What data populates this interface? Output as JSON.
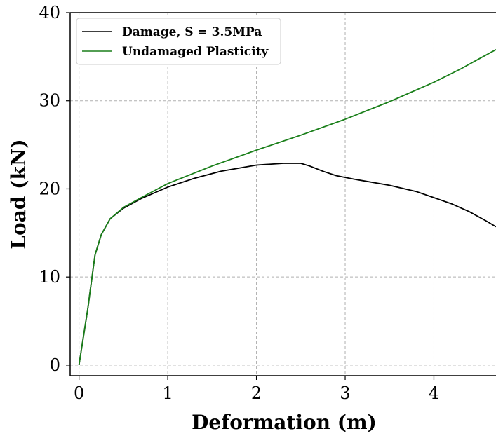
{
  "chart_data": {
    "type": "line",
    "xlabel": "Deformation (m)",
    "ylabel": "Load (kN)",
    "xlim": [
      -0.1,
      4.7
    ],
    "ylim": [
      -1.2,
      40
    ],
    "xticks": [
      "0",
      "1",
      "2",
      "3",
      "4"
    ],
    "yticks": [
      "0",
      "10",
      "20",
      "30",
      "40"
    ],
    "grid": true,
    "legend_position": "top-left",
    "series": [
      {
        "name": "Damage, S = 3.5MPa",
        "color": "#000000",
        "x": [
          0,
          0.1,
          0.18,
          0.25,
          0.35,
          0.5,
          0.7,
          1.0,
          1.3,
          1.6,
          2.0,
          2.3,
          2.5,
          2.6,
          2.75,
          2.9,
          3.1,
          3.5,
          3.8,
          4.0,
          4.2,
          4.4,
          4.6,
          4.7
        ],
        "y": [
          0,
          6.5,
          12.5,
          14.8,
          16.6,
          17.8,
          18.9,
          20.2,
          21.2,
          22.0,
          22.7,
          22.9,
          22.9,
          22.6,
          22.0,
          21.5,
          21.1,
          20.4,
          19.7,
          19.0,
          18.3,
          17.4,
          16.3,
          15.7
        ]
      },
      {
        "name": "Undamaged Plasticity",
        "color": "#1a7f1a",
        "x": [
          0,
          0.1,
          0.18,
          0.25,
          0.35,
          0.5,
          0.7,
          1.0,
          1.5,
          2.0,
          2.5,
          3.0,
          3.5,
          4.0,
          4.3,
          4.5,
          4.7
        ],
        "y": [
          0,
          6.5,
          12.5,
          14.8,
          16.6,
          17.9,
          19.0,
          20.6,
          22.6,
          24.4,
          26.1,
          27.9,
          29.9,
          32.1,
          33.6,
          34.7,
          35.8
        ]
      }
    ]
  }
}
